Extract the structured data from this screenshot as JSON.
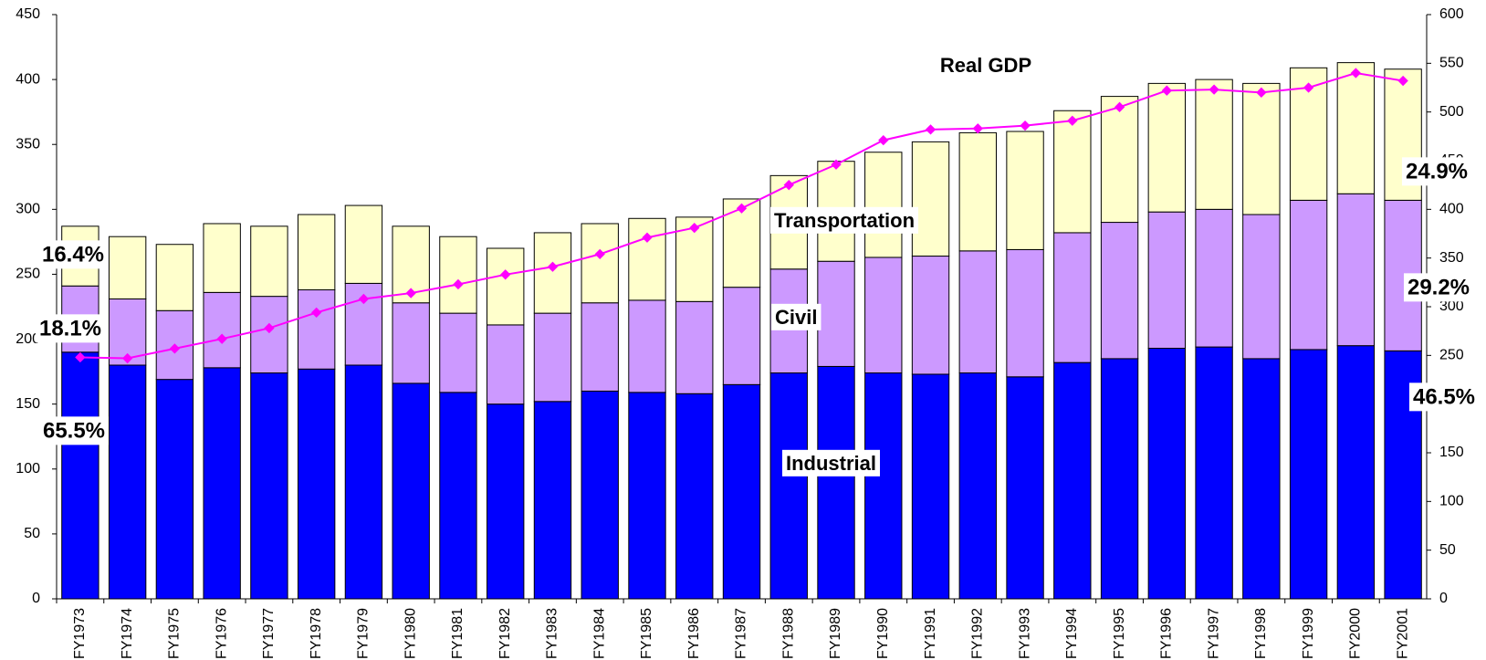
{
  "chart_data": {
    "type": "bar",
    "stacked": true,
    "categories": [
      "FY1973",
      "FY1974",
      "FY1975",
      "FY1976",
      "FY1977",
      "FY1978",
      "FY1979",
      "FY1980",
      "FY1981",
      "FY1982",
      "FY1983",
      "FY1984",
      "FY1985",
      "FY1986",
      "FY1987",
      "FY1988",
      "FY1989",
      "FY1990",
      "FY1991",
      "FY1992",
      "FY1993",
      "FY1994",
      "FY1995",
      "FY1996",
      "FY1997",
      "FY1998",
      "FY1999",
      "FY2000",
      "FY2001"
    ],
    "series": [
      {
        "name": "Industrial",
        "color": "#0000ff",
        "values": [
          190,
          180,
          169,
          178,
          174,
          177,
          180,
          166,
          159,
          150,
          152,
          160,
          159,
          158,
          165,
          174,
          179,
          174,
          173,
          174,
          171,
          182,
          185,
          193,
          194,
          185,
          192,
          195,
          191
        ]
      },
      {
        "name": "Civil",
        "color": "#cc99ff",
        "values": [
          51,
          51,
          53,
          58,
          59,
          61,
          63,
          62,
          61,
          61,
          68,
          68,
          71,
          71,
          75,
          80,
          81,
          89,
          91,
          94,
          98,
          100,
          105,
          105,
          106,
          111,
          115,
          117,
          116
        ]
      },
      {
        "name": "Transportation",
        "color": "#ffffcc",
        "values": [
          46,
          48,
          51,
          53,
          54,
          58,
          60,
          59,
          59,
          59,
          62,
          61,
          63,
          65,
          68,
          72,
          77,
          81,
          88,
          91,
          91,
          94,
          97,
          99,
          100,
          101,
          102,
          101,
          101
        ]
      },
      {
        "name": "Real GDP",
        "color": "#ff00ff",
        "type": "line",
        "axis": "y2",
        "values": [
          248,
          247,
          257,
          267,
          278,
          294,
          308,
          314,
          323,
          333,
          341,
          354,
          371,
          381,
          401,
          425,
          446,
          471,
          482,
          483,
          486,
          491,
          505,
          522,
          523,
          520,
          525,
          540,
          532
        ]
      }
    ],
    "annotations": [
      "16.4%",
      "18.1%",
      "65.5%",
      "24.9%",
      "29.2%",
      "46.5%"
    ],
    "ylim": [
      0,
      450
    ],
    "yticks": [
      0,
      50,
      100,
      150,
      200,
      250,
      300,
      350,
      400,
      450
    ],
    "y2lim": [
      0,
      600
    ],
    "y2ticks": [
      0,
      50,
      100,
      150,
      200,
      250,
      300,
      350,
      400,
      450,
      500,
      550,
      600
    ]
  }
}
